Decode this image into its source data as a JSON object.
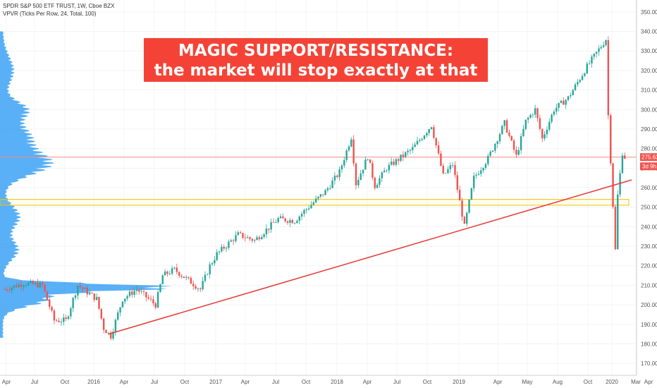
{
  "header": {
    "symbol_line": "SPDR S&P 500 ETF TRUST, 1W, Cboe BZX",
    "indicator_line": "VPVR (Ticks Per Row, 24, Total, 100)"
  },
  "banner": {
    "line1": "MAGIC SUPPORT/RESISTANCE:",
    "line2": "the market will stop exactly at that point"
  },
  "price_badges": {
    "last_price": "275.63",
    "countdown": "3d 9h"
  },
  "colors": {
    "up": "#26a69a",
    "down": "#ef5350",
    "trendline": "#e53935",
    "zone_border": "#f4c20d",
    "volume_profile": "#2196f3",
    "banner": "#f44336",
    "price_line": "#f28b82"
  },
  "chart_data": {
    "type": "candlestick",
    "interval": "1W",
    "ylim": [
      165,
      355
    ],
    "y_ticks": [
      170,
      180,
      190,
      200,
      210,
      220,
      230,
      240,
      250,
      260,
      270,
      280,
      290,
      300,
      310,
      320,
      330,
      340,
      350
    ],
    "x_labels": [
      "Apr",
      "Jul",
      "Oct",
      "2016",
      "Apr",
      "Jul",
      "Oct",
      "2017",
      "Apr",
      "Jul",
      "Oct",
      "2018",
      "Apr",
      "Jul",
      "Oct",
      "2019",
      "Apr",
      "May",
      "Aug",
      "Oct",
      "2020",
      "Mar",
      "Apr"
    ],
    "close_path": [
      [
        "2015-03-30",
        208
      ],
      [
        "2015-05-25",
        211
      ],
      [
        "2015-07-20",
        210
      ],
      [
        "2015-08-24",
        192
      ],
      [
        "2015-09-28",
        192
      ],
      [
        "2015-11-02",
        210
      ],
      [
        "2015-12-28",
        203
      ],
      [
        "2016-01-18",
        188
      ],
      [
        "2016-02-08",
        184
      ],
      [
        "2016-03-14",
        203
      ],
      [
        "2016-04-25",
        208
      ],
      [
        "2016-06-20",
        200
      ],
      [
        "2016-07-11",
        215
      ],
      [
        "2016-08-15",
        218
      ],
      [
        "2016-10-31",
        208
      ],
      [
        "2016-11-28",
        220
      ],
      [
        "2016-12-19",
        226
      ],
      [
        "2017-02-20",
        236
      ],
      [
        "2017-04-10",
        233
      ],
      [
        "2017-06-19",
        244
      ],
      [
        "2017-08-07",
        243
      ],
      [
        "2017-09-04",
        248
      ],
      [
        "2017-11-06",
        258
      ],
      [
        "2017-12-18",
        268
      ],
      [
        "2018-01-22",
        286
      ],
      [
        "2018-02-05",
        262
      ],
      [
        "2018-03-12",
        276
      ],
      [
        "2018-04-02",
        261
      ],
      [
        "2018-05-07",
        270
      ],
      [
        "2018-07-23",
        280
      ],
      [
        "2018-09-17",
        292
      ],
      [
        "2018-10-22",
        266
      ],
      [
        "2018-11-19",
        272
      ],
      [
        "2018-12-24",
        240
      ],
      [
        "2019-01-21",
        265
      ],
      [
        "2019-03-04",
        275
      ],
      [
        "2019-04-22",
        293
      ],
      [
        "2019-05-27",
        276
      ],
      [
        "2019-06-24",
        294
      ],
      [
        "2019-07-22",
        300
      ],
      [
        "2019-08-12",
        285
      ],
      [
        "2019-09-16",
        300
      ],
      [
        "2019-10-28",
        306
      ],
      [
        "2019-12-23",
        322
      ],
      [
        "2020-02-17",
        336
      ],
      [
        "2020-02-24",
        297
      ],
      [
        "2020-03-16",
        228
      ],
      [
        "2020-03-23",
        256
      ],
      [
        "2020-04-06",
        278
      ],
      [
        "2020-04-13",
        275.63
      ]
    ],
    "horizontal_line": 275.63,
    "support_zone": [
      251,
      254
    ],
    "trendline": [
      [
        "2016-02-01",
        185
      ],
      [
        "2020-05-04",
        264
      ]
    ]
  }
}
